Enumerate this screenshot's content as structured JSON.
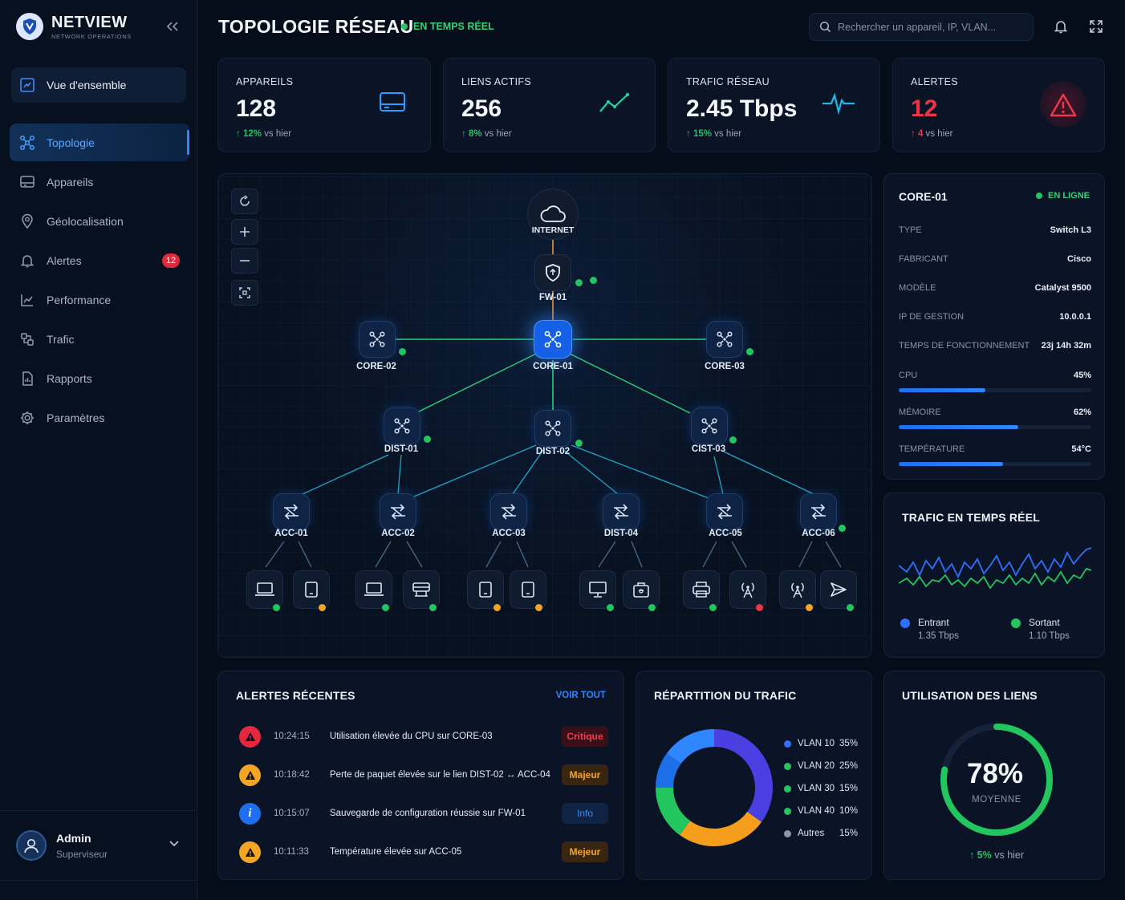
{
  "brand": {
    "name": "NETVIEW",
    "subtitle": "NETWORK OPERATIONS"
  },
  "sidebar": {
    "overview": "Vue d'ensemble",
    "items": [
      {
        "label": "Topologie",
        "icon": "topology-icon",
        "active": true
      },
      {
        "label": "Appareils",
        "icon": "devices-icon"
      },
      {
        "label": "Géolocalisation",
        "icon": "location-pin-icon"
      },
      {
        "label": "Alertes",
        "icon": "bell-icon",
        "badge": "12"
      },
      {
        "label": "Performance",
        "icon": "performance-chart-icon"
      },
      {
        "label": "Trafic",
        "icon": "traffic-icon"
      },
      {
        "label": "Rapports",
        "icon": "report-icon"
      },
      {
        "label": "Paramètres",
        "icon": "gear-icon"
      }
    ],
    "user": {
      "name": "Admin",
      "role": "Superviseur"
    }
  },
  "header": {
    "title": "TOPOLOGIE RÉSEAU",
    "live": "EN TEMPS RÉEL",
    "search_placeholder": "Rechercher un appareil, IP, VLAN..."
  },
  "stats": [
    {
      "label": "APPAREILS",
      "value": "128",
      "trend_pct": "12%",
      "trend_text": " vs hier",
      "icon": "device-tray-icon"
    },
    {
      "label": "LIENS ACTIFS",
      "value": "256",
      "trend_pct": "8%",
      "trend_text": " vs hier",
      "icon": "trend-line-icon"
    },
    {
      "label": "TRAFIC RÉSEAU",
      "value": "2.45 Tbps",
      "trend_pct": "15%",
      "trend_text": " vs hier",
      "icon": "pulse-icon"
    },
    {
      "label": "ALERTES",
      "value": "12",
      "trend_pct": "4",
      "trend_text": " vs hier",
      "icon": "warning-triangle-icon"
    }
  ],
  "topology": {
    "nodes": {
      "internet": "INTERNET",
      "fw": "FW-01",
      "core1": "CORE-01",
      "core2": "CORE-02",
      "core3": "CORE-03",
      "dist1": "DIST-01",
      "dist2": "DIST-02",
      "dist3": "CIST-03",
      "acc1": "ACC-01",
      "acc2": "ACC-02",
      "acc3": "ACC-03",
      "dist4": "DIST-04",
      "acc5": "ACC-05",
      "acc6": "ACC-06"
    }
  },
  "detail": {
    "name": "CORE-01",
    "status": "EN LIGNE",
    "rows": [
      {
        "k": "TYPE",
        "v": "Switch L3"
      },
      {
        "k": "FABRICANT",
        "v": "Cisco"
      },
      {
        "k": "MODÈLE",
        "v": "Catalyst 9500"
      },
      {
        "k": "IP DE GESTION",
        "v": "10.0.0.1"
      },
      {
        "k": "TEMPS DE FONCTIONNEMENT",
        "v": "23j 14h 32m"
      }
    ],
    "metrics": [
      {
        "k": "CPU",
        "v": "45%",
        "level": 0.45
      },
      {
        "k": "MÉMOIRE",
        "v": "62%",
        "level": 0.62
      },
      {
        "k": "TEMPÉRATURE",
        "v": "54°C",
        "level": 0.54
      }
    ]
  },
  "traffic": {
    "title": "TRAFIC EN TEMPS RÉEL",
    "in_label": "Entrant",
    "in_value": "1.35 Tbps",
    "out_label": "Sortant",
    "out_value": "1.10 Tbps",
    "colors": {
      "in": "#2f6fff",
      "out": "#22c55e"
    }
  },
  "alerts": {
    "title": "ALERTES RÉCENTES",
    "voir": "VOIR TOUT",
    "items": [
      {
        "time": "10:24:15",
        "msg": "Utilisation élevée du CPU sur CORE-03",
        "tag": "Critique",
        "kind": "critical"
      },
      {
        "time": "10:18:42",
        "msg": "Perte de paquet élevée sur le lien DIST-02 ↔ ACC-04",
        "tag": "Majeur",
        "kind": "major"
      },
      {
        "time": "10:15:07",
        "msg": "Sauvegarde de configuration réussie sur FW-01",
        "tag": "Info",
        "kind": "info"
      },
      {
        "time": "10:11:33",
        "msg": "Température élevée sur ACC-05",
        "tag": "Mejeur",
        "kind": "major"
      }
    ]
  },
  "repartition": {
    "title": "RÉPARTITION DU TRAFIC",
    "items": [
      {
        "label": "VLAN 10",
        "pct": "35%",
        "value": 35,
        "color": "#4a3fe0"
      },
      {
        "label": "VLAN 20",
        "pct": "25%",
        "value": 25,
        "color": "#f59e1b"
      },
      {
        "label": "VLAN 30",
        "pct": "15%",
        "value": 15,
        "color": "#22c55e"
      },
      {
        "label": "VLAN 40",
        "pct": "10%",
        "value": 10,
        "color": "#1d6fe8"
      },
      {
        "label": "Autres",
        "pct": "15%",
        "value": 15,
        "color": "#2f86ff"
      }
    ]
  },
  "usage": {
    "title": "UTILISATION DES LIENS",
    "value": "78%",
    "level": 0.78,
    "sub": "MOYENNE",
    "trend_pct": "5%",
    "trend_text": " vs hier"
  }
}
